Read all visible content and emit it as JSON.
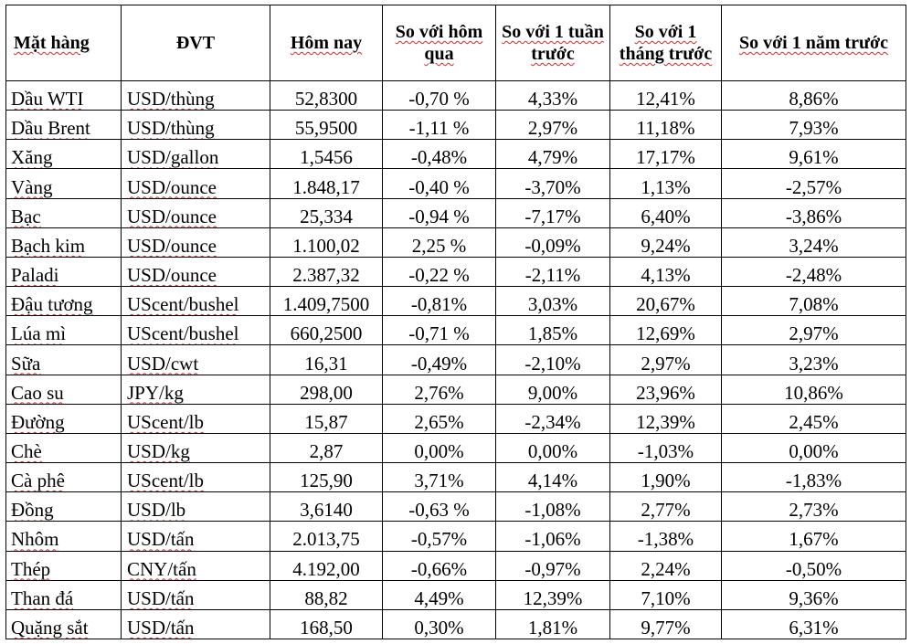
{
  "headers": [
    "Mặt hàng",
    "ĐVT",
    "Hôm nay",
    "So với hôm qua",
    "So với 1 tuần trước",
    "So với 1 tháng trước",
    "So với 1 năm trước"
  ],
  "rows": [
    [
      "Dầu WTI",
      "USD/thùng",
      "52,8300",
      "-0,70 %",
      "4,33%",
      "12,41%",
      "8,86%"
    ],
    [
      "Dầu Brent",
      "USD/thùng",
      "55,9500",
      "-1,11 %",
      "2,97%",
      "11,18%",
      "7,93%"
    ],
    [
      "Xăng",
      "USD/gallon",
      "1,5456",
      "-0,48%",
      "4,79%",
      "17,17%",
      "9,61%"
    ],
    [
      "Vàng",
      "USD/ounce",
      "1.848,17",
      "-0,40 %",
      "-3,70%",
      "1,13%",
      "-2,57%"
    ],
    [
      "Bạc",
      "USD/ounce",
      "25,334",
      "-0,94 %",
      "-7,17%",
      "6,40%",
      "-3,86%"
    ],
    [
      "Bạch kim",
      "USD/ounce",
      "1.100,02",
      "2,25 %",
      "-0,09%",
      "9,24%",
      "3,24%"
    ],
    [
      "Paladi",
      "USD/ounce",
      "2.387,32",
      "-0,22 %",
      "-2,11%",
      "4,13%",
      "-2,48%"
    ],
    [
      "Đậu tương",
      "UScent/bushel",
      "1.409,7500",
      "-0,81%",
      "3,03%",
      "20,67%",
      "7,08%"
    ],
    [
      "Lúa mì",
      "UScent/bushel",
      "660,2500",
      "-0,71 %",
      "1,85%",
      "12,69%",
      "2,97%"
    ],
    [
      "Sữa",
      "USD/cwt",
      "16,31",
      "-0,49%",
      "-2,10%",
      "2,97%",
      "3,23%"
    ],
    [
      "Cao su",
      "JPY/kg",
      "298,00",
      "2,76%",
      "9,00%",
      "23,96%",
      "10,86%"
    ],
    [
      "Đường",
      "UScent/lb",
      "15,87",
      "2,65%",
      "-2,34%",
      "12,39%",
      "2,45%"
    ],
    [
      "Chè",
      "USD/kg",
      "2,87",
      "0,00%",
      "0,00%",
      "-1,03%",
      "0,00%"
    ],
    [
      "Cà phê",
      "UScent/lb",
      "125,90",
      "3,71%",
      "4,14%",
      "1,90%",
      "-1,83%"
    ],
    [
      "Đồng",
      "USD/lb",
      "3,6140",
      "-0,63 %",
      "-1,08%",
      "2,77%",
      "2,73%"
    ],
    [
      "Nhôm",
      "USD/tấn",
      "2.013,75",
      "-0,57%",
      "-1,06%",
      "-1,38%",
      "1,67%"
    ],
    [
      "Thép",
      "CNY/tấn",
      "4.192,00",
      "-0,66%",
      "-0,97%",
      "2,24%",
      "-0,50%"
    ],
    [
      "Than đá",
      "USD/tấn",
      "88,82",
      "4,49%",
      "12,39%",
      "7,10%",
      "9,36%"
    ],
    [
      "Quặng sắt",
      "USD/tấn",
      "168,50",
      "0,30%",
      "1,81%",
      "9,77%",
      "6,31%"
    ]
  ]
}
